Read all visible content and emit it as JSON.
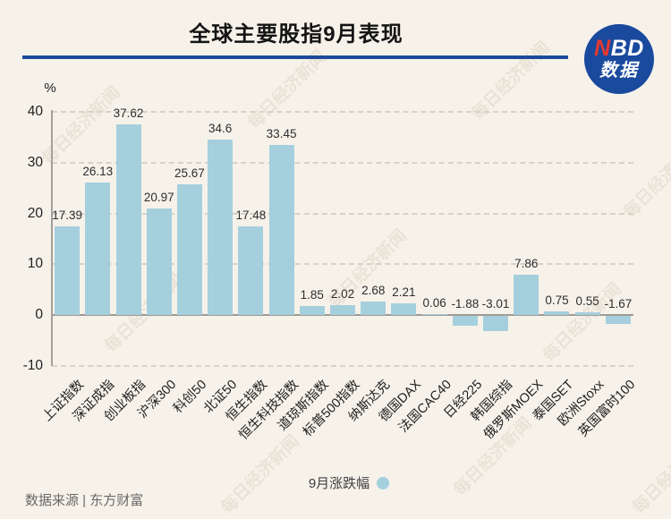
{
  "header": {
    "title": "全球主要股指9月表现",
    "logo": {
      "n": "N",
      "bd": "BD",
      "subtitle": "数据",
      "bg_color": "#1a4a9e",
      "n_color": "#e6382e"
    }
  },
  "chart_data": {
    "type": "bar",
    "title": "全球主要股指9月表现",
    "ylabel": "%",
    "categories": [
      "上证指数",
      "深证成指",
      "创业板指",
      "沪深300",
      "科创50",
      "北证50",
      "恒生指数",
      "恒生科技指数",
      "道琼斯指数",
      "标普500指数",
      "纳斯达克",
      "德国DAX",
      "法国CAC40",
      "日经225",
      "韩国综指",
      "俄罗斯MOEX",
      "泰国SET",
      "欧洲Stoxx",
      "英国富时100"
    ],
    "values": [
      17.39,
      26.13,
      37.62,
      20.97,
      25.67,
      34.6,
      17.48,
      33.45,
      1.85,
      2.02,
      2.68,
      2.21,
      0.06,
      -1.88,
      -3.01,
      7.86,
      0.75,
      0.55,
      -1.67
    ],
    "ylim": [
      -10,
      40
    ],
    "yticks": [
      40,
      30,
      20,
      10,
      0,
      -10
    ],
    "grid": "horizontal-dashed",
    "bar_color": "#a5cfdd",
    "legend_label": "9月涨跌幅",
    "legend_position": "bottom-center"
  },
  "footer": {
    "source": "数据来源 | 东方财富"
  },
  "watermark": {
    "text": "每日经济新闻"
  }
}
